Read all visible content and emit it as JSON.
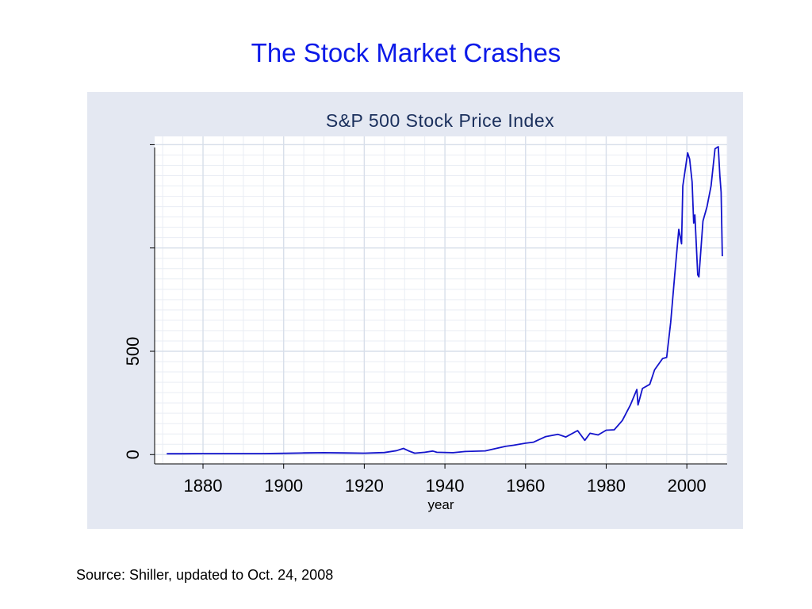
{
  "slide": {
    "title": "The Stock Market Crashes",
    "source": "Source: Shiller, updated to Oct. 24, 2008"
  },
  "chart_data": {
    "type": "line",
    "title": "S&P 500 Stock Price Index",
    "xlabel": "year",
    "ylabel": "",
    "xlim": [
      1868,
      2010
    ],
    "ylim": [
      -45,
      1540
    ],
    "x_ticks": [
      1880,
      1900,
      1920,
      1940,
      1960,
      1980,
      2000
    ],
    "y_ticks_labeled": [
      0,
      500
    ],
    "y_ticks_unlabeled": [
      1000,
      1500
    ],
    "grid": true,
    "line_color": "#1414cc",
    "series": [
      {
        "x": [
          1871,
          1875,
          1880,
          1885,
          1890,
          1895,
          1900,
          1905,
          1910,
          1915,
          1920,
          1925,
          1928,
          1929.7,
          1931,
          1932.5,
          1935,
          1937,
          1938,
          1942,
          1945,
          1950,
          1955,
          1957,
          1960,
          1962,
          1965,
          1968,
          1970,
          1972.9,
          1974.7,
          1976,
          1978,
          1980,
          1982,
          1984,
          1986,
          1987.6,
          1987.9,
          1989,
          1990.8,
          1992,
          1994,
          1995,
          1996,
          1997,
          1998,
          1998.7,
          1999,
          2000.2,
          2000.7,
          2001.3,
          2001.7,
          2002,
          2002.7,
          2003,
          2004,
          2005,
          2006,
          2007,
          2007.8,
          2008.2,
          2008.5,
          2008.8
        ],
        "y": [
          4,
          4,
          5,
          5,
          5,
          5,
          6,
          8,
          9,
          8,
          7,
          10,
          19,
          30,
          18,
          7,
          11,
          17,
          11,
          9,
          15,
          18,
          40,
          45,
          55,
          60,
          87,
          98,
          85,
          116,
          69,
          103,
          95,
          118,
          120,
          165,
          240,
          315,
          240,
          320,
          340,
          410,
          465,
          470,
          640,
          870,
          1090,
          1020,
          1300,
          1460,
          1430,
          1320,
          1120,
          1160,
          870,
          860,
          1130,
          1200,
          1300,
          1480,
          1490,
          1350,
          1270,
          960
        ]
      }
    ]
  }
}
